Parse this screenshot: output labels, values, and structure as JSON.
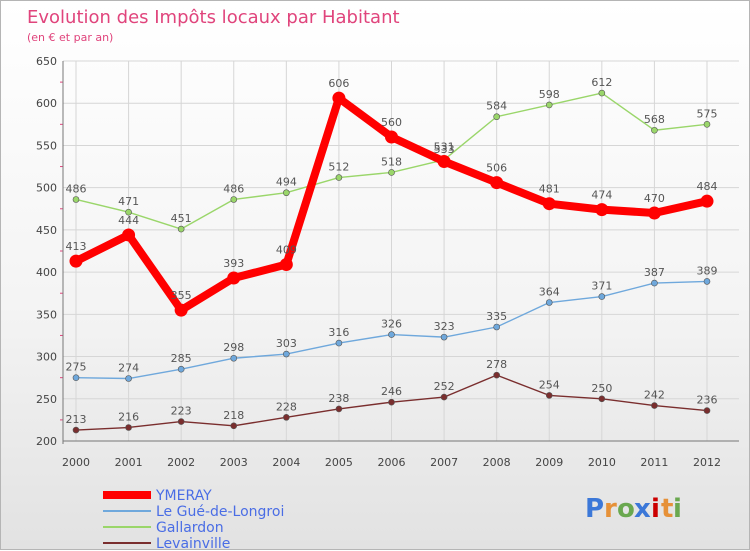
{
  "chart_data": {
    "type": "line",
    "title": "Evolution des Impôts locaux par Habitant",
    "subtitle": "(en € et par an)",
    "xlabel": "",
    "ylabel": "",
    "ylim": [
      200,
      650
    ],
    "yticks": [
      "200",
      "250",
      "300",
      "350",
      "400",
      "450",
      "500",
      "550",
      "600",
      "650"
    ],
    "categories": [
      "2000",
      "2001",
      "2002",
      "2003",
      "2004",
      "2005",
      "2006",
      "2007",
      "2008",
      "2009",
      "2010",
      "2011",
      "2012"
    ],
    "grid": true,
    "legend_position": "bottom-left",
    "series": [
      {
        "name": "YMERAY",
        "color": "#ff0000",
        "values": [
          413,
          444,
          355,
          393,
          409,
          606,
          560,
          531,
          506,
          481,
          474,
          470,
          484
        ]
      },
      {
        "name": "Le Gué-de-Longroi",
        "color": "#6fa8dc",
        "values": [
          275,
          274,
          285,
          298,
          303,
          316,
          326,
          323,
          335,
          364,
          371,
          387,
          389
        ]
      },
      {
        "name": "Gallardon",
        "color": "#9ad66a",
        "values": [
          486,
          471,
          451,
          486,
          494,
          512,
          518,
          533,
          584,
          598,
          612,
          568,
          575
        ]
      },
      {
        "name": "Levainville",
        "color": "#7a2e2e",
        "values": [
          213,
          216,
          223,
          218,
          228,
          238,
          246,
          252,
          278,
          254,
          250,
          242,
          236
        ]
      }
    ]
  },
  "logo": {
    "letters": [
      "P",
      "r",
      "o",
      "x",
      "i",
      "t",
      "i"
    ],
    "colors": [
      "#3c78d8",
      "#e69138",
      "#6aa84f",
      "#3c78d8",
      "#cc0000",
      "#e69138",
      "#6aa84f"
    ]
  }
}
